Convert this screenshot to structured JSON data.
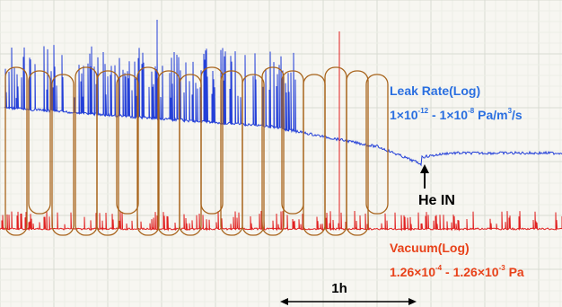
{
  "leak": {
    "title": "Leak Rate(Log)",
    "range": [
      "1×10",
      "-12",
      " - 1×10",
      "-8",
      " Pa/m",
      "3",
      "/s"
    ]
  },
  "marker": {
    "label": "He IN"
  },
  "vacuum": {
    "title": "Vacuum(Log)",
    "range": [
      "1.26×10",
      "-4",
      " - 1.26×10",
      "-3",
      " Pa"
    ]
  },
  "scale": {
    "label": "1h"
  }
}
